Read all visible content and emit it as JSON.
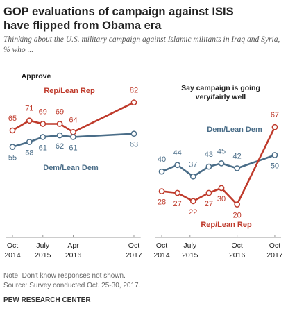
{
  "header": {
    "title": "GOP evaluations of campaign against ISIS have flipped from Obama era",
    "subtitle": "Thinking about the U.S. military campaign against Islamic militants in Iraq and Syria, % who ..."
  },
  "chart_data": [
    {
      "type": "line",
      "title": "Approve",
      "x": [
        "2014-10",
        "2015-03",
        "2015-07",
        "2015-12",
        "2016-04",
        "2017-10"
      ],
      "xlim": [
        "2014-08",
        "2017-12"
      ],
      "xticks": [
        {
          "value": "2014-10",
          "label": "Oct 2014"
        },
        {
          "value": "2015-07",
          "label": "July 2015"
        },
        {
          "value": "2016-04",
          "label": "Apr 2016"
        },
        {
          "value": "2017-10",
          "label": "Oct 2017"
        }
      ],
      "ylim": [
        0,
        100
      ],
      "series": [
        {
          "name": "Rep/Lean Rep",
          "color": "#bf3a2b",
          "values": [
            65,
            71,
            69,
            69,
            64,
            82
          ]
        },
        {
          "name": "Dem/Lean Dem",
          "color": "#4a6d88",
          "values": [
            55,
            58,
            61,
            62,
            61,
            63
          ]
        }
      ]
    },
    {
      "type": "line",
      "title": "Say campaign is going very/fairly well",
      "x": [
        "2014-10",
        "2015-03",
        "2015-08",
        "2016-01",
        "2016-05",
        "2016-10",
        "2017-10"
      ],
      "xlim": [
        "2014-08",
        "2017-12"
      ],
      "xticks": [
        {
          "value": "2014-10",
          "label": "Oct 2014"
        },
        {
          "value": "2015-07",
          "label": "July 2015"
        },
        {
          "value": "2016-10",
          "label": "Oct 2016"
        },
        {
          "value": "2017-10",
          "label": "Oct 2017"
        }
      ],
      "ylim": [
        0,
        100
      ],
      "series": [
        {
          "name": "Dem/Lean Dem",
          "color": "#4a6d88",
          "values": [
            40,
            44,
            37,
            43,
            45,
            42,
            50
          ]
        },
        {
          "name": "Rep/Lean Rep",
          "color": "#bf3a2b",
          "values": [
            28,
            27,
            22,
            27,
            30,
            20,
            67
          ]
        }
      ]
    }
  ],
  "footer": {
    "note": "Note: Don't know responses not shown.",
    "source": "Source: Survey conducted Oct. 25-30, 2017.",
    "brand": "PEW RESEARCH CENTER"
  }
}
